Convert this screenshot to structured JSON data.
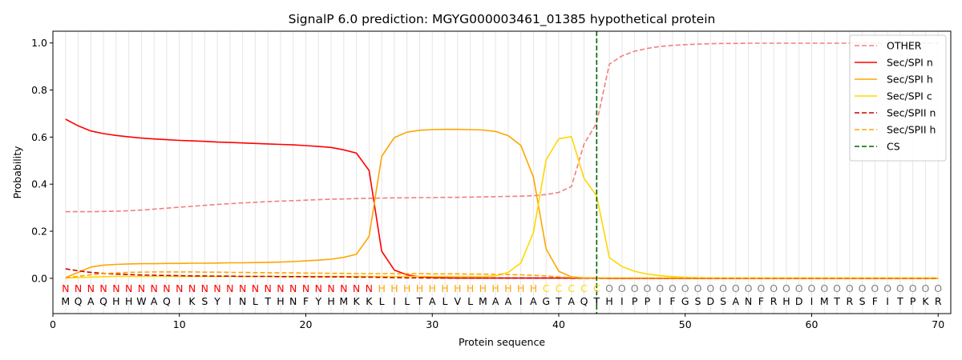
{
  "chart_data": {
    "type": "line",
    "title": "SignalP 6.0 prediction: MGYG000003461_01385 hypothetical protein",
    "xlabel": "Protein sequence",
    "ylabel": "Probability",
    "xlim": [
      0,
      71
    ],
    "ylim": [
      -0.15,
      1.05
    ],
    "x_ticks": [
      0,
      10,
      20,
      30,
      40,
      50,
      60,
      70
    ],
    "y_ticks": [
      0.0,
      0.2,
      0.4,
      0.6,
      0.8,
      1.0
    ],
    "grid": "vertical lines at each residue",
    "legend_position": "top-right",
    "sequence": "MQAQHHWAQIKSYINLTHNFYHMKKLILTALVLMAAIAGTAQTHIPPIFGSDSANFRHDIMTRSFITPKR",
    "labels": "NNNNNNNNNNNNNNNNNNNNNNNNNHHHHHHHHHHHHHCCCCCOOOOOOOOOOOOOOOOOOOOOOOOOOO",
    "label_colors": {
      "N": "#ff0000",
      "H": "#ffa500",
      "C": "#ffd700",
      "O": "#808080"
    },
    "cs_position": 43,
    "series": [
      {
        "name": "OTHER",
        "color": "#f08080",
        "dash": true,
        "values": [
          0.283,
          0.283,
          0.283,
          0.284,
          0.285,
          0.287,
          0.29,
          0.294,
          0.298,
          0.302,
          0.306,
          0.31,
          0.314,
          0.317,
          0.32,
          0.323,
          0.326,
          0.328,
          0.33,
          0.332,
          0.334,
          0.336,
          0.337,
          0.339,
          0.34,
          0.341,
          0.342,
          0.342,
          0.343,
          0.343,
          0.344,
          0.344,
          0.345,
          0.346,
          0.347,
          0.348,
          0.349,
          0.351,
          0.356,
          0.365,
          0.39,
          0.57,
          0.66,
          0.91,
          0.945,
          0.965,
          0.977,
          0.985,
          0.99,
          0.993,
          0.995,
          0.997,
          0.998,
          0.998,
          0.999,
          0.999,
          0.999,
          0.999,
          0.999,
          0.999,
          0.999,
          0.999,
          0.999,
          0.999,
          0.999,
          0.999,
          0.999,
          0.999,
          0.999,
          0.999
        ]
      },
      {
        "name": "Sec/SPI n",
        "color": "#ff0000",
        "dash": false,
        "values": [
          0.676,
          0.648,
          0.626,
          0.615,
          0.607,
          0.601,
          0.596,
          0.592,
          0.589,
          0.586,
          0.584,
          0.582,
          0.579,
          0.577,
          0.575,
          0.573,
          0.571,
          0.569,
          0.567,
          0.564,
          0.56,
          0.556,
          0.546,
          0.532,
          0.458,
          0.115,
          0.035,
          0.015,
          0.006,
          0.003,
          0.002,
          0.001,
          0.001,
          0.001,
          0.001,
          0.001,
          0.001,
          0.001,
          0.001,
          0.001,
          0.001,
          0.001,
          0.001,
          0.0,
          0.0,
          0.0,
          0.0,
          0.0,
          0.0,
          0.0,
          0.0,
          0.0,
          0.0,
          0.0,
          0.0,
          0.0,
          0.0,
          0.0,
          0.0,
          0.0,
          0.0,
          0.0,
          0.0,
          0.0,
          0.0,
          0.0,
          0.0,
          0.0,
          0.0,
          0.0
        ]
      },
      {
        "name": "Sec/SPI h",
        "color": "#ffa500",
        "dash": false,
        "values": [
          0.003,
          0.025,
          0.048,
          0.056,
          0.059,
          0.061,
          0.062,
          0.062,
          0.063,
          0.063,
          0.064,
          0.064,
          0.065,
          0.066,
          0.066,
          0.067,
          0.068,
          0.069,
          0.071,
          0.074,
          0.077,
          0.081,
          0.089,
          0.102,
          0.178,
          0.518,
          0.598,
          0.621,
          0.629,
          0.632,
          0.633,
          0.633,
          0.632,
          0.63,
          0.624,
          0.606,
          0.565,
          0.43,
          0.125,
          0.03,
          0.006,
          0.002,
          0.001,
          0.001,
          0.001,
          0.001,
          0.001,
          0.001,
          0.001,
          0.001,
          0.001,
          0.001,
          0.001,
          0.001,
          0.001,
          0.001,
          0.001,
          0.001,
          0.001,
          0.001,
          0.001,
          0.001,
          0.001,
          0.001,
          0.001,
          0.001,
          0.001,
          0.001,
          0.001,
          0.001
        ]
      },
      {
        "name": "Sec/SPI c",
        "color": "#ffd700",
        "dash": false,
        "values": [
          0.001,
          0.003,
          0.005,
          0.007,
          0.008,
          0.008,
          0.008,
          0.008,
          0.008,
          0.008,
          0.008,
          0.008,
          0.008,
          0.008,
          0.008,
          0.008,
          0.008,
          0.008,
          0.008,
          0.008,
          0.008,
          0.008,
          0.008,
          0.008,
          0.008,
          0.008,
          0.008,
          0.008,
          0.008,
          0.008,
          0.008,
          0.008,
          0.008,
          0.008,
          0.01,
          0.025,
          0.065,
          0.195,
          0.503,
          0.593,
          0.602,
          0.425,
          0.35,
          0.088,
          0.05,
          0.03,
          0.018,
          0.011,
          0.007,
          0.004,
          0.003,
          0.002,
          0.001,
          0.001,
          0.001,
          0.001,
          0.001,
          0.001,
          0.001,
          0.001,
          0.001,
          0.001,
          0.001,
          0.001,
          0.001,
          0.001,
          0.001,
          0.001,
          0.001,
          0.001
        ]
      },
      {
        "name": "Sec/SPII n",
        "color": "#cc0000",
        "dash": true,
        "values": [
          0.04,
          0.032,
          0.025,
          0.021,
          0.018,
          0.016,
          0.014,
          0.013,
          0.012,
          0.011,
          0.01,
          0.01,
          0.009,
          0.009,
          0.008,
          0.008,
          0.008,
          0.007,
          0.007,
          0.007,
          0.006,
          0.006,
          0.006,
          0.005,
          0.005,
          0.004,
          0.003,
          0.002,
          0.002,
          0.001,
          0.001,
          0.001,
          0.001,
          0.001,
          0.001,
          0.001,
          0.001,
          0.001,
          0.001,
          0.001,
          0.0,
          0.0,
          0.0,
          0.0,
          0.0,
          0.0,
          0.0,
          0.0,
          0.0,
          0.0,
          0.0,
          0.0,
          0.0,
          0.0,
          0.0,
          0.0,
          0.0,
          0.0,
          0.0,
          0.0,
          0.0,
          0.0,
          0.0,
          0.0,
          0.0,
          0.0,
          0.0,
          0.0,
          0.0,
          0.0
        ]
      },
      {
        "name": "Sec/SPII h",
        "color": "#ffa500",
        "dash": true,
        "values": [
          0.002,
          0.008,
          0.015,
          0.02,
          0.023,
          0.025,
          0.026,
          0.027,
          0.027,
          0.027,
          0.027,
          0.026,
          0.026,
          0.025,
          0.025,
          0.024,
          0.024,
          0.023,
          0.023,
          0.022,
          0.022,
          0.021,
          0.021,
          0.02,
          0.02,
          0.02,
          0.02,
          0.02,
          0.02,
          0.019,
          0.019,
          0.019,
          0.018,
          0.018,
          0.017,
          0.016,
          0.015,
          0.013,
          0.01,
          0.006,
          0.003,
          0.001,
          0.001,
          0.001,
          0.001,
          0.001,
          0.001,
          0.001,
          0.001,
          0.001,
          0.001,
          0.001,
          0.001,
          0.001,
          0.001,
          0.001,
          0.001,
          0.001,
          0.001,
          0.001,
          0.001,
          0.001,
          0.001,
          0.001,
          0.001,
          0.001,
          0.001,
          0.001,
          0.001,
          0.001
        ]
      }
    ],
    "cs_legend": {
      "name": "CS",
      "color": "#006400",
      "dash": true
    }
  }
}
